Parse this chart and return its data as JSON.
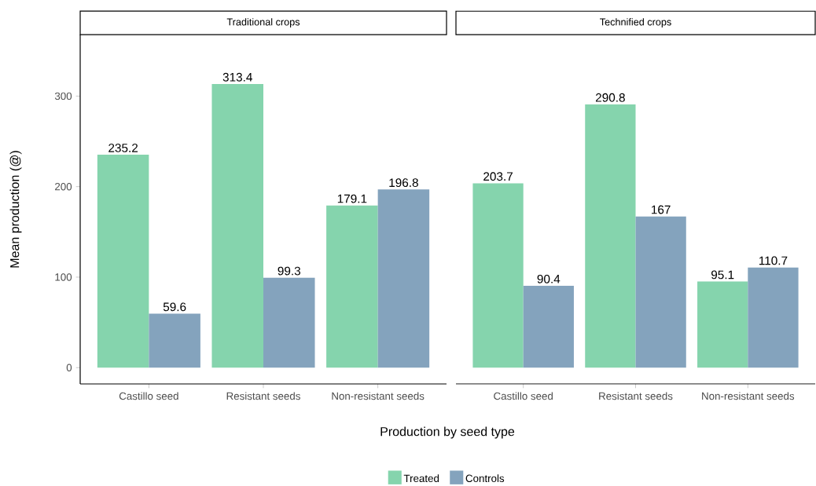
{
  "chart_data": [
    {
      "type": "bar",
      "title": "Traditional crops",
      "xlabel": "Production by seed type",
      "ylabel": "Mean production (@)",
      "categories": [
        "Castillo seed",
        "Resistant seeds",
        "Non-resistant seeds"
      ],
      "series": [
        {
          "name": "Treated",
          "color": "#85d4ad",
          "values": [
            235.2,
            313.4,
            179.1
          ]
        },
        {
          "name": "Controls",
          "color": "#84a3bd",
          "values": [
            59.6,
            99.3,
            196.8
          ]
        }
      ],
      "ylim": [
        -18,
        368
      ],
      "yticks": [
        0,
        100,
        200,
        300
      ],
      "data_labels": true,
      "legend": "bottom"
    },
    {
      "type": "bar",
      "title": "Technified crops",
      "categories": [
        "Castillo seed",
        "Resistant seeds",
        "Non-resistant seeds"
      ],
      "series": [
        {
          "color": "#85d4ad",
          "values": [
            203.7,
            290.8,
            95.1
          ]
        },
        {
          "color": "#84a3bd",
          "values": [
            90.4,
            167,
            110.7
          ]
        }
      ],
      "data_labels": true,
      "tick_labels": "x"
    }
  ]
}
